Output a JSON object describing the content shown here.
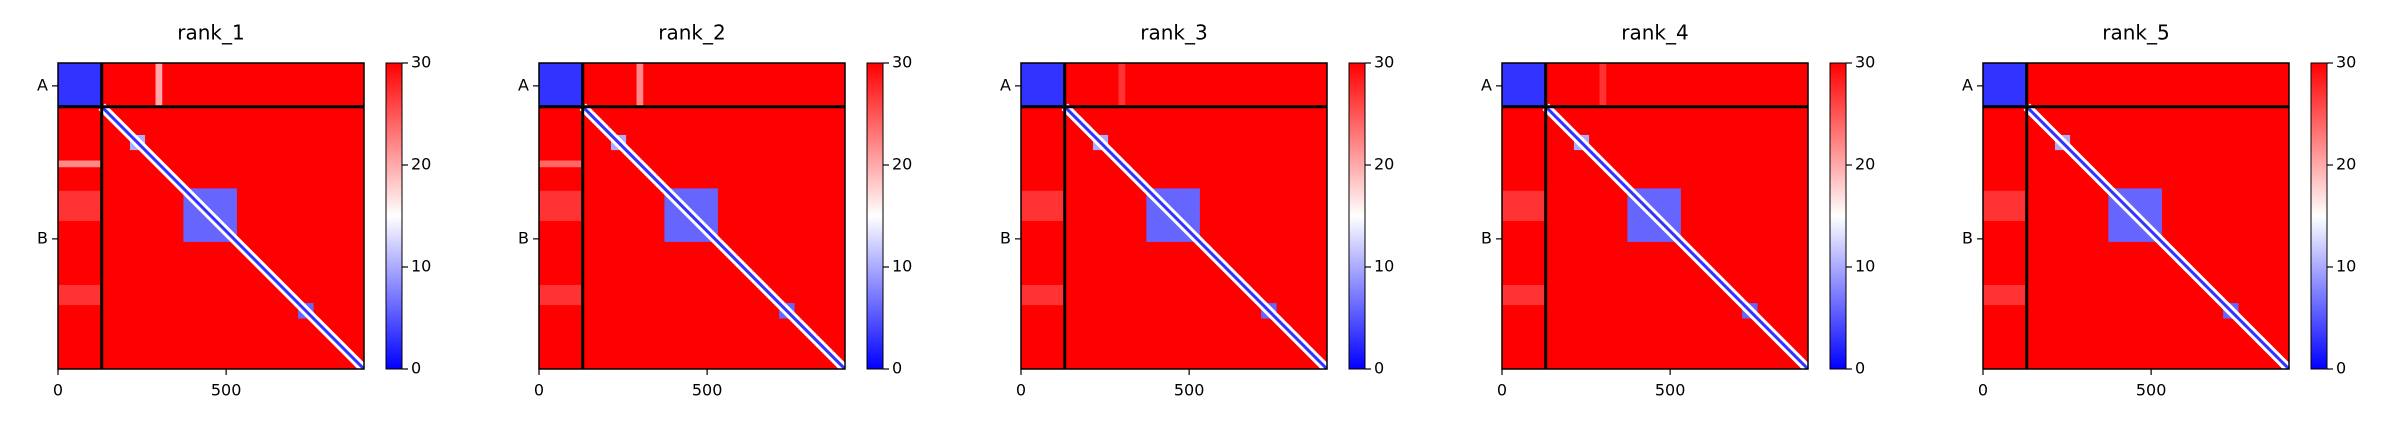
{
  "chart_data": [
    {
      "type": "heatmap",
      "title": "rank_1",
      "xlim": [
        0,
        910
      ],
      "ylim": [
        910,
        0
      ],
      "xticks": [
        0,
        500
      ],
      "yticks": [
        {
          "value": 68,
          "label": "A"
        },
        {
          "value": 523,
          "label": "B"
        }
      ],
      "clim": [
        0,
        30
      ],
      "cticks": [
        0,
        10,
        20,
        30
      ],
      "colormap": "bwr",
      "boundaries": [
        130
      ],
      "diagonal": 3,
      "blocks": [
        {
          "x": [
            0,
            910
          ],
          "y": [
            0,
            910
          ],
          "value": 30
        },
        {
          "x": [
            0,
            130
          ],
          "y": [
            0,
            130
          ],
          "value": 3
        },
        {
          "x": [
            290,
            310
          ],
          "y": [
            0,
            130
          ],
          "value": 20
        },
        {
          "x": [
            0,
            130
          ],
          "y": [
            290,
            310
          ],
          "value": 22
        },
        {
          "x": [
            0,
            130
          ],
          "y": [
            380,
            470
          ],
          "value": 27
        },
        {
          "x": [
            0,
            130
          ],
          "y": [
            660,
            720
          ],
          "value": 27
        },
        {
          "x": [
            214,
            259
          ],
          "y": [
            214,
            259
          ],
          "value": 10
        },
        {
          "x": [
            373,
            532
          ],
          "y": [
            373,
            532
          ],
          "value": 6
        },
        {
          "x": [
            714,
            760
          ],
          "y": [
            714,
            760
          ],
          "value": 6
        }
      ]
    },
    {
      "type": "heatmap",
      "title": "rank_2",
      "xlim": [
        0,
        910
      ],
      "ylim": [
        910,
        0
      ],
      "xticks": [
        0,
        500
      ],
      "yticks": [
        {
          "value": 68,
          "label": "A"
        },
        {
          "value": 523,
          "label": "B"
        }
      ],
      "clim": [
        0,
        30
      ],
      "cticks": [
        0,
        10,
        20,
        30
      ],
      "colormap": "bwr",
      "boundaries": [
        130
      ],
      "diagonal": 3,
      "blocks": [
        {
          "x": [
            0,
            910
          ],
          "y": [
            0,
            910
          ],
          "value": 30
        },
        {
          "x": [
            0,
            130
          ],
          "y": [
            0,
            130
          ],
          "value": 3
        },
        {
          "x": [
            290,
            310
          ],
          "y": [
            0,
            130
          ],
          "value": 22
        },
        {
          "x": [
            0,
            130
          ],
          "y": [
            290,
            310
          ],
          "value": 24
        },
        {
          "x": [
            0,
            130
          ],
          "y": [
            380,
            470
          ],
          "value": 27
        },
        {
          "x": [
            0,
            130
          ],
          "y": [
            660,
            720
          ],
          "value": 27
        },
        {
          "x": [
            214,
            259
          ],
          "y": [
            214,
            259
          ],
          "value": 10
        },
        {
          "x": [
            373,
            532
          ],
          "y": [
            373,
            532
          ],
          "value": 6
        },
        {
          "x": [
            714,
            760
          ],
          "y": [
            714,
            760
          ],
          "value": 6
        }
      ]
    },
    {
      "type": "heatmap",
      "title": "rank_3",
      "xlim": [
        0,
        910
      ],
      "ylim": [
        910,
        0
      ],
      "xticks": [
        0,
        500
      ],
      "yticks": [
        {
          "value": 68,
          "label": "A"
        },
        {
          "value": 523,
          "label": "B"
        }
      ],
      "clim": [
        0,
        30
      ],
      "cticks": [
        0,
        10,
        20,
        30
      ],
      "colormap": "bwr",
      "boundaries": [
        130
      ],
      "diagonal": 3,
      "blocks": [
        {
          "x": [
            0,
            910
          ],
          "y": [
            0,
            910
          ],
          "value": 30
        },
        {
          "x": [
            0,
            130
          ],
          "y": [
            0,
            130
          ],
          "value": 3
        },
        {
          "x": [
            290,
            310
          ],
          "y": [
            0,
            130
          ],
          "value": 27
        },
        {
          "x": [
            0,
            130
          ],
          "y": [
            380,
            470
          ],
          "value": 27
        },
        {
          "x": [
            0,
            130
          ],
          "y": [
            660,
            720
          ],
          "value": 27
        },
        {
          "x": [
            214,
            259
          ],
          "y": [
            214,
            259
          ],
          "value": 10
        },
        {
          "x": [
            373,
            532
          ],
          "y": [
            373,
            532
          ],
          "value": 6
        },
        {
          "x": [
            714,
            760
          ],
          "y": [
            714,
            760
          ],
          "value": 6
        }
      ]
    },
    {
      "type": "heatmap",
      "title": "rank_4",
      "xlim": [
        0,
        910
      ],
      "ylim": [
        910,
        0
      ],
      "xticks": [
        0,
        500
      ],
      "yticks": [
        {
          "value": 68,
          "label": "A"
        },
        {
          "value": 523,
          "label": "B"
        }
      ],
      "clim": [
        0,
        30
      ],
      "cticks": [
        0,
        10,
        20,
        30
      ],
      "colormap": "bwr",
      "boundaries": [
        130
      ],
      "diagonal": 3,
      "blocks": [
        {
          "x": [
            0,
            910
          ],
          "y": [
            0,
            910
          ],
          "value": 30
        },
        {
          "x": [
            0,
            130
          ],
          "y": [
            0,
            130
          ],
          "value": 3
        },
        {
          "x": [
            290,
            310
          ],
          "y": [
            0,
            130
          ],
          "value": 27
        },
        {
          "x": [
            0,
            130
          ],
          "y": [
            380,
            470
          ],
          "value": 27
        },
        {
          "x": [
            0,
            130
          ],
          "y": [
            660,
            720
          ],
          "value": 27
        },
        {
          "x": [
            214,
            259
          ],
          "y": [
            214,
            259
          ],
          "value": 10
        },
        {
          "x": [
            373,
            532
          ],
          "y": [
            373,
            532
          ],
          "value": 6
        },
        {
          "x": [
            714,
            760
          ],
          "y": [
            714,
            760
          ],
          "value": 6
        }
      ]
    },
    {
      "type": "heatmap",
      "title": "rank_5",
      "xlim": [
        0,
        910
      ],
      "ylim": [
        910,
        0
      ],
      "xticks": [
        0,
        500
      ],
      "yticks": [
        {
          "value": 68,
          "label": "A"
        },
        {
          "value": 523,
          "label": "B"
        }
      ],
      "clim": [
        0,
        30
      ],
      "cticks": [
        0,
        10,
        20,
        30
      ],
      "colormap": "bwr",
      "boundaries": [
        130
      ],
      "diagonal": 3,
      "blocks": [
        {
          "x": [
            0,
            910
          ],
          "y": [
            0,
            910
          ],
          "value": 30
        },
        {
          "x": [
            0,
            130
          ],
          "y": [
            0,
            130
          ],
          "value": 3
        },
        {
          "x": [
            0,
            130
          ],
          "y": [
            380,
            470
          ],
          "value": 27
        },
        {
          "x": [
            0,
            130
          ],
          "y": [
            660,
            720
          ],
          "value": 27
        },
        {
          "x": [
            214,
            259
          ],
          "y": [
            214,
            259
          ],
          "value": 10
        },
        {
          "x": [
            373,
            532
          ],
          "y": [
            373,
            532
          ],
          "value": 6
        },
        {
          "x": [
            714,
            760
          ],
          "y": [
            714,
            760
          ],
          "value": 6
        }
      ]
    }
  ]
}
